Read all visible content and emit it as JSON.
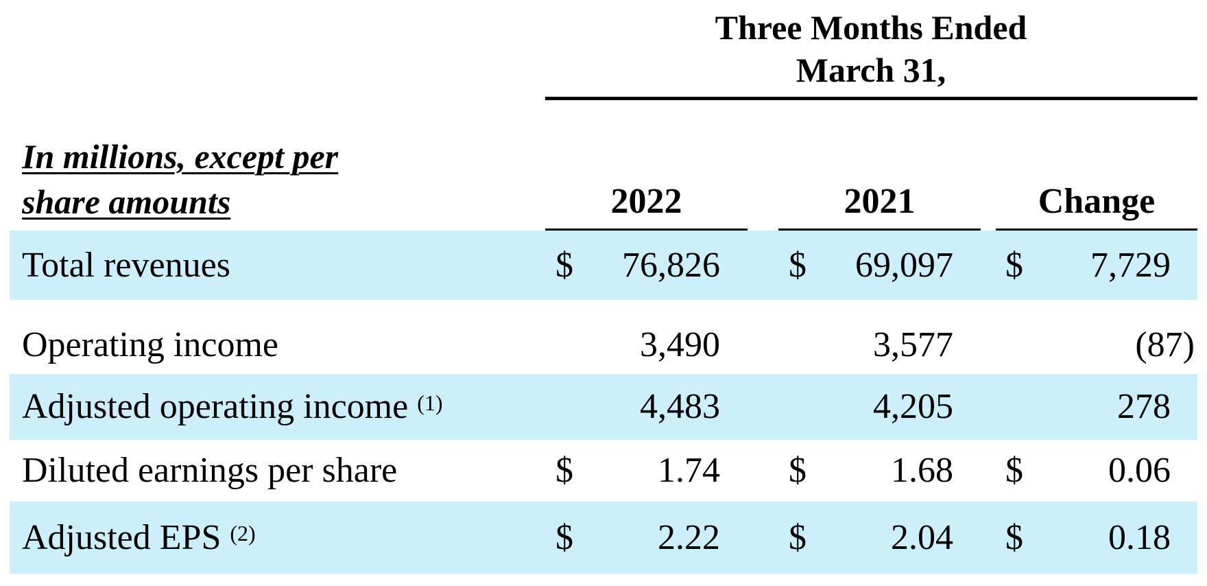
{
  "header": {
    "period_line1": "Three Months Ended",
    "period_line2": "March 31,",
    "units_line1": "In millions, except per",
    "units_line2": "share amounts",
    "columns": [
      "2022",
      "2021",
      "Change"
    ]
  },
  "rows": [
    {
      "label": "Total revenues",
      "note": "",
      "c1": "$",
      "v1": "76,826",
      "c2": "$",
      "v2": "69,097",
      "c3": "$",
      "v3": "7,729"
    },
    {
      "label": "Operating income",
      "note": "",
      "c1": "",
      "v1": "3,490",
      "c2": "",
      "v2": "3,577",
      "c3": "",
      "v3": "(87)"
    },
    {
      "label": "Adjusted operating income",
      "note": "(1)",
      "c1": "",
      "v1": "4,483",
      "c2": "",
      "v2": "4,205",
      "c3": "",
      "v3": "278"
    },
    {
      "label": "Diluted earnings per share",
      "note": "",
      "c1": "$",
      "v1": "1.74",
      "c2": "$",
      "v2": "1.68",
      "c3": "$",
      "v3": "0.06"
    },
    {
      "label": "Adjusted EPS",
      "note": "(2)",
      "c1": "$",
      "v1": "2.22",
      "c2": "$",
      "v2": "2.04",
      "c3": "$",
      "v3": "0.18"
    }
  ],
  "colors": {
    "band": "#cdeefb",
    "text": "#000000"
  }
}
